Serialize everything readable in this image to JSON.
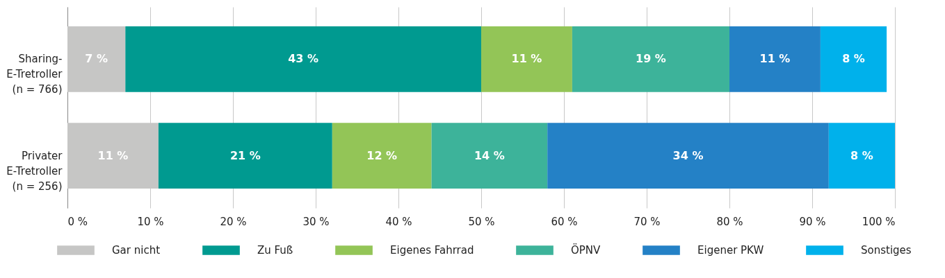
{
  "chart_data": {
    "type": "bar",
    "orientation": "horizontal",
    "stacked": true,
    "categories": [
      "Sharing-\nE-Tretroller\n(n = 766)",
      "Privater\nE-Tretroller\n(n = 256)"
    ],
    "series": [
      {
        "name": "Gar nicht",
        "color": "#c6c6c5",
        "values": [
          7,
          11
        ],
        "value_labels": [
          "7 %",
          "11 %"
        ]
      },
      {
        "name": "Zu Fuß",
        "color": "#009a90",
        "values": [
          43,
          21
        ],
        "value_labels": [
          "43 %",
          "21 %"
        ]
      },
      {
        "name": "Eigenes Fahrrad",
        "color": "#93c557",
        "values": [
          11,
          12
        ],
        "value_labels": [
          "11 %",
          "12 %"
        ]
      },
      {
        "name": "ÖPNV",
        "color": "#3db39a",
        "values": [
          19,
          14
        ],
        "value_labels": [
          "19 %",
          "14 %"
        ]
      },
      {
        "name": "Eigener PKW",
        "color": "#2481c6",
        "values": [
          11,
          34
        ],
        "value_labels": [
          "11 %",
          "34 %"
        ]
      },
      {
        "name": "Sonstiges",
        "color": "#00b1eb",
        "values": [
          8,
          8
        ],
        "value_labels": [
          "8 %",
          "8 %"
        ]
      }
    ],
    "xlim": [
      0,
      100
    ],
    "xticks": [
      {
        "value": 0,
        "label": "0 %"
      },
      {
        "value": 10,
        "label": "10 %"
      },
      {
        "value": 20,
        "label": "20 %"
      },
      {
        "value": 30,
        "label": "30 %"
      },
      {
        "value": 40,
        "label": "40 %"
      },
      {
        "value": 50,
        "label": "50 %"
      },
      {
        "value": 60,
        "label": "60 %"
      },
      {
        "value": 70,
        "label": "70 %"
      },
      {
        "value": 80,
        "label": "80 %"
      },
      {
        "value": 90,
        "label": "90 %"
      },
      {
        "value": 100,
        "label": "100 %"
      }
    ],
    "grid": "x",
    "legend": "bottom"
  }
}
